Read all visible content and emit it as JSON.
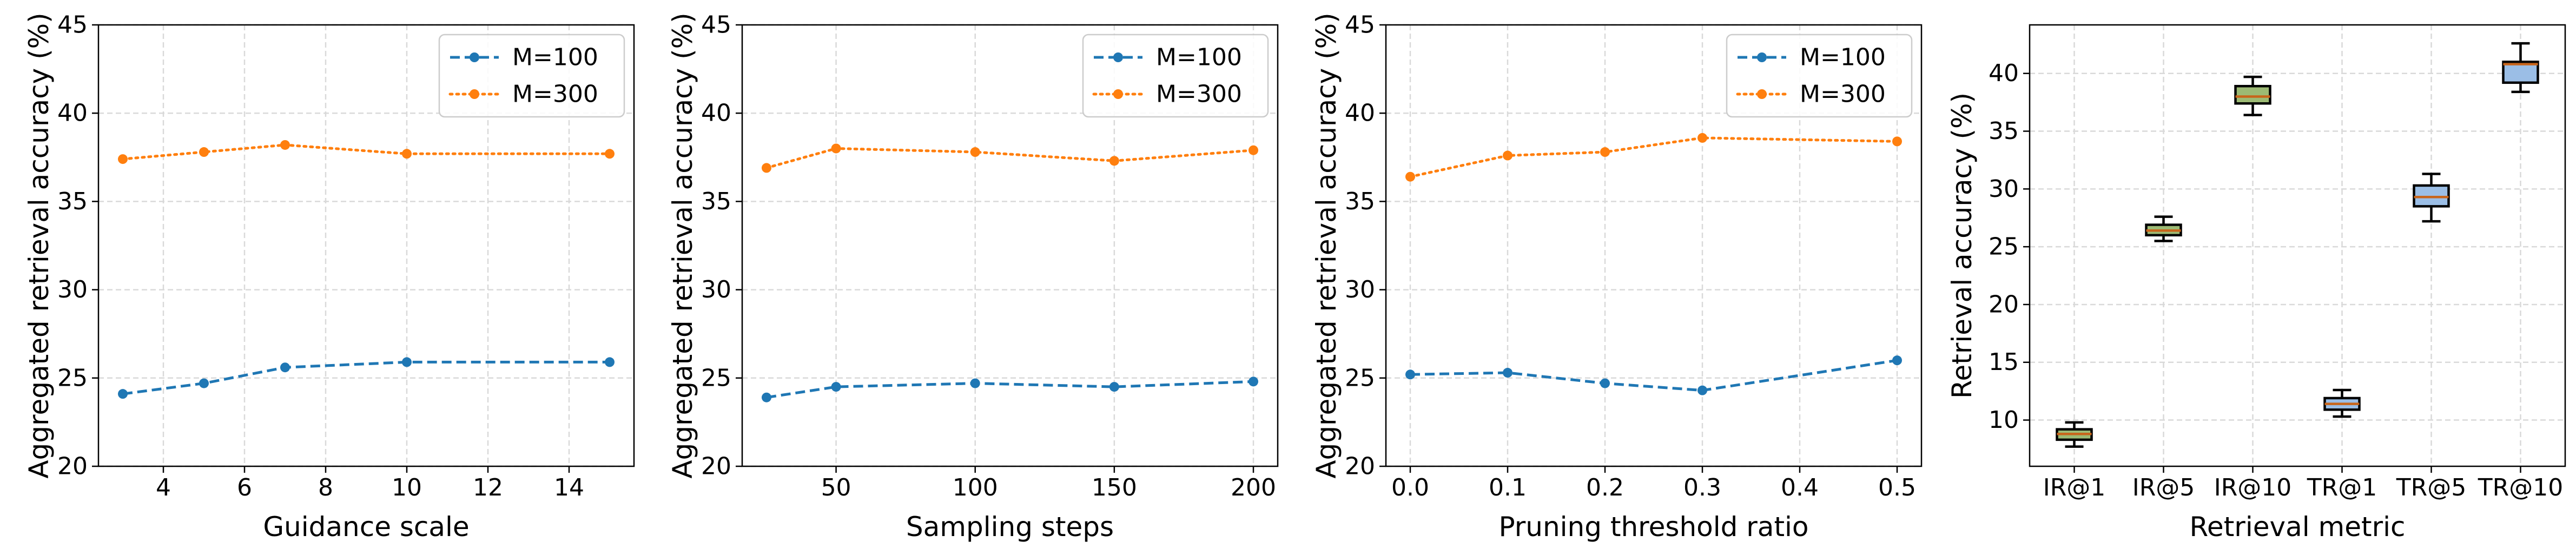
{
  "chart_data": [
    {
      "type": "line",
      "xlabel": "Guidance scale",
      "ylabel": "Aggregated retrieval accuracy (%)",
      "xlim": [
        2.4,
        15.6
      ],
      "ylim": [
        20,
        45
      ],
      "xticks": [
        4,
        6,
        8,
        10,
        12,
        14
      ],
      "xtick_labels": [
        "4",
        "6",
        "8",
        "10",
        "12",
        "14"
      ],
      "yticks": [
        20,
        25,
        30,
        35,
        40,
        45
      ],
      "ytick_labels": [
        "20",
        "25",
        "30",
        "35",
        "40",
        "45"
      ],
      "grid": true,
      "legend_position": "top-right",
      "x": [
        3,
        5,
        7,
        10,
        15
      ],
      "series": [
        {
          "name": "M=100",
          "values": [
            24.1,
            24.7,
            25.6,
            25.9,
            25.9
          ],
          "color": "#1f77b4",
          "style": "dashed"
        },
        {
          "name": "M=300",
          "values": [
            37.4,
            37.8,
            38.2,
            37.7,
            37.7
          ],
          "color": "#ff7f0e",
          "style": "dotted"
        }
      ]
    },
    {
      "type": "line",
      "xlabel": "Sampling steps",
      "ylabel": "Aggregated retrieval accuracy (%)",
      "xlim": [
        16.25,
        208.75
      ],
      "ylim": [
        20,
        45
      ],
      "xticks": [
        50,
        100,
        150,
        200
      ],
      "xtick_labels": [
        "50",
        "100",
        "150",
        "200"
      ],
      "yticks": [
        20,
        25,
        30,
        35,
        40,
        45
      ],
      "ytick_labels": [
        "20",
        "25",
        "30",
        "35",
        "40",
        "45"
      ],
      "grid": true,
      "legend_position": "top-right",
      "x": [
        25,
        50,
        100,
        150,
        200
      ],
      "series": [
        {
          "name": "M=100",
          "values": [
            23.9,
            24.5,
            24.7,
            24.5,
            24.8
          ],
          "color": "#1f77b4",
          "style": "dashed"
        },
        {
          "name": "M=300",
          "values": [
            36.9,
            38.0,
            37.8,
            37.3,
            37.9
          ],
          "color": "#ff7f0e",
          "style": "dotted"
        }
      ]
    },
    {
      "type": "line",
      "xlabel": "Pruning threshold ratio",
      "ylabel": "Aggregated retrieval accuracy (%)",
      "xlim": [
        -0.025,
        0.525
      ],
      "ylim": [
        20,
        45
      ],
      "xticks": [
        0.0,
        0.1,
        0.2,
        0.3,
        0.4,
        0.5
      ],
      "xtick_labels": [
        "0.0",
        "0.1",
        "0.2",
        "0.3",
        "0.4",
        "0.5"
      ],
      "yticks": [
        20,
        25,
        30,
        35,
        40,
        45
      ],
      "ytick_labels": [
        "20",
        "25",
        "30",
        "35",
        "40",
        "45"
      ],
      "grid": true,
      "legend_position": "top-right",
      "x": [
        0.0,
        0.1,
        0.2,
        0.3,
        0.5
      ],
      "series": [
        {
          "name": "M=100",
          "values": [
            25.2,
            25.3,
            24.7,
            24.3,
            26.0
          ],
          "color": "#1f77b4",
          "style": "dashed"
        },
        {
          "name": "M=300",
          "values": [
            36.4,
            37.6,
            37.8,
            38.6,
            38.4
          ],
          "color": "#ff7f0e",
          "style": "dotted"
        }
      ]
    },
    {
      "type": "box",
      "xlabel": "Retrieval metric",
      "ylabel": "Retrieval accuracy (%)",
      "ylim": [
        6,
        44.2
      ],
      "yticks": [
        10,
        15,
        20,
        25,
        30,
        35,
        40
      ],
      "ytick_labels": [
        "10",
        "15",
        "20",
        "25",
        "30",
        "35",
        "40"
      ],
      "grid": true,
      "categories": [
        "IR@1",
        "IR@5",
        "IR@10",
        "TR@1",
        "TR@5",
        "TR@10"
      ],
      "boxes": [
        {
          "min": 7.7,
          "q1": 8.3,
          "median": 8.8,
          "q3": 9.2,
          "max": 9.8,
          "color": "#9cba74"
        },
        {
          "min": 25.5,
          "q1": 26.0,
          "median": 26.4,
          "q3": 26.9,
          "max": 27.6,
          "color": "#9cba74"
        },
        {
          "min": 36.4,
          "q1": 37.4,
          "median": 38.0,
          "q3": 38.9,
          "max": 39.7,
          "color": "#9cba74"
        },
        {
          "min": 10.3,
          "q1": 10.9,
          "median": 11.4,
          "q3": 11.9,
          "max": 12.6,
          "color": "#9bbee6"
        },
        {
          "min": 27.2,
          "q1": 28.5,
          "median": 29.3,
          "q3": 30.3,
          "max": 31.3,
          "color": "#9bbee6"
        },
        {
          "min": 38.4,
          "q1": 39.2,
          "median": 40.8,
          "q3": 41.0,
          "max": 42.6,
          "color": "#9bbee6"
        }
      ],
      "median_color": "#c8651b"
    }
  ]
}
